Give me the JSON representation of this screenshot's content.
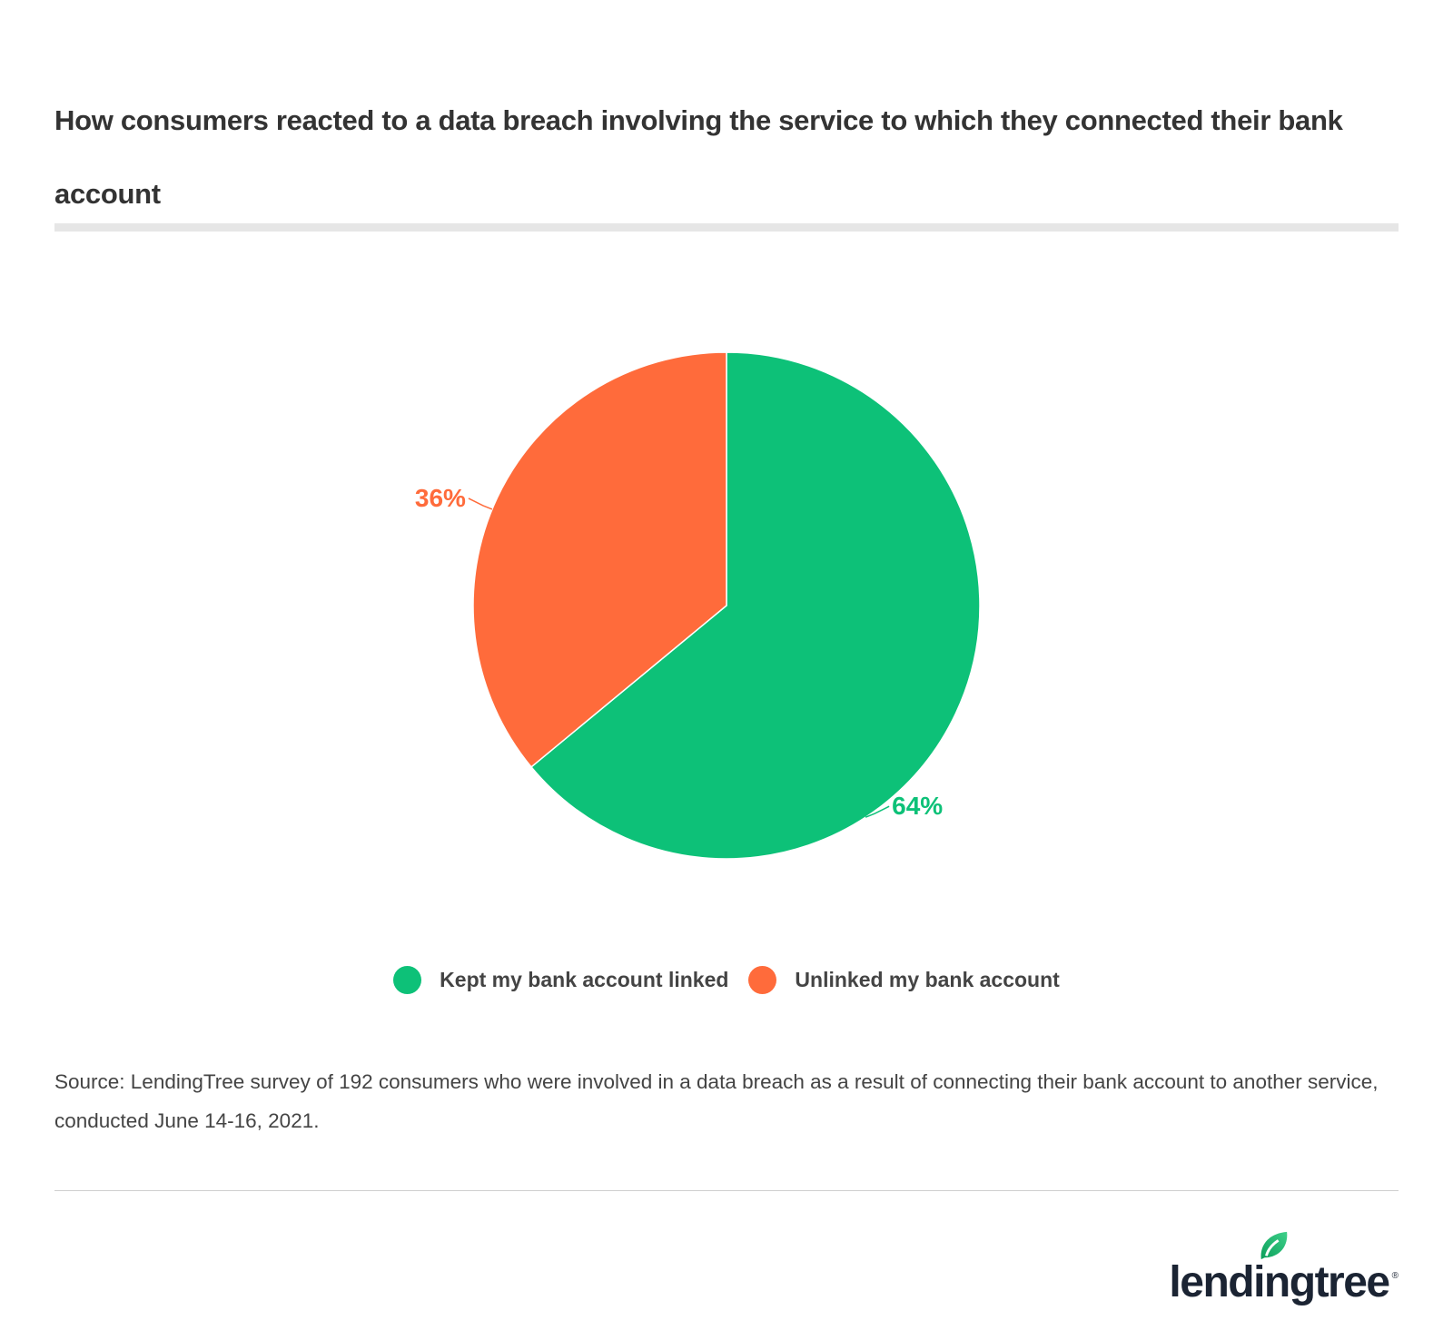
{
  "title": "How consumers reacted to a data breach involving the service to which they connected their bank account",
  "source": "Source: LendingTree survey of 192 consumers who were involved in a data breach as a result of connecting their bank account to another service, conducted June 14-16, 2021.",
  "logo": {
    "text": "lendingtree",
    "reg": "®"
  },
  "chart_data": {
    "type": "pie",
    "title": "How consumers reacted to a data breach involving the service to which they connected their bank account",
    "slices": [
      {
        "name": "Kept my bank account linked",
        "value": 64,
        "label": "64%",
        "color": "#0dc178"
      },
      {
        "name": "Unlinked my bank account",
        "value": 36,
        "label": "36%",
        "color": "#ff6b3b"
      }
    ],
    "start": "12 o'clock, clockwise",
    "legend_position": "bottom"
  }
}
